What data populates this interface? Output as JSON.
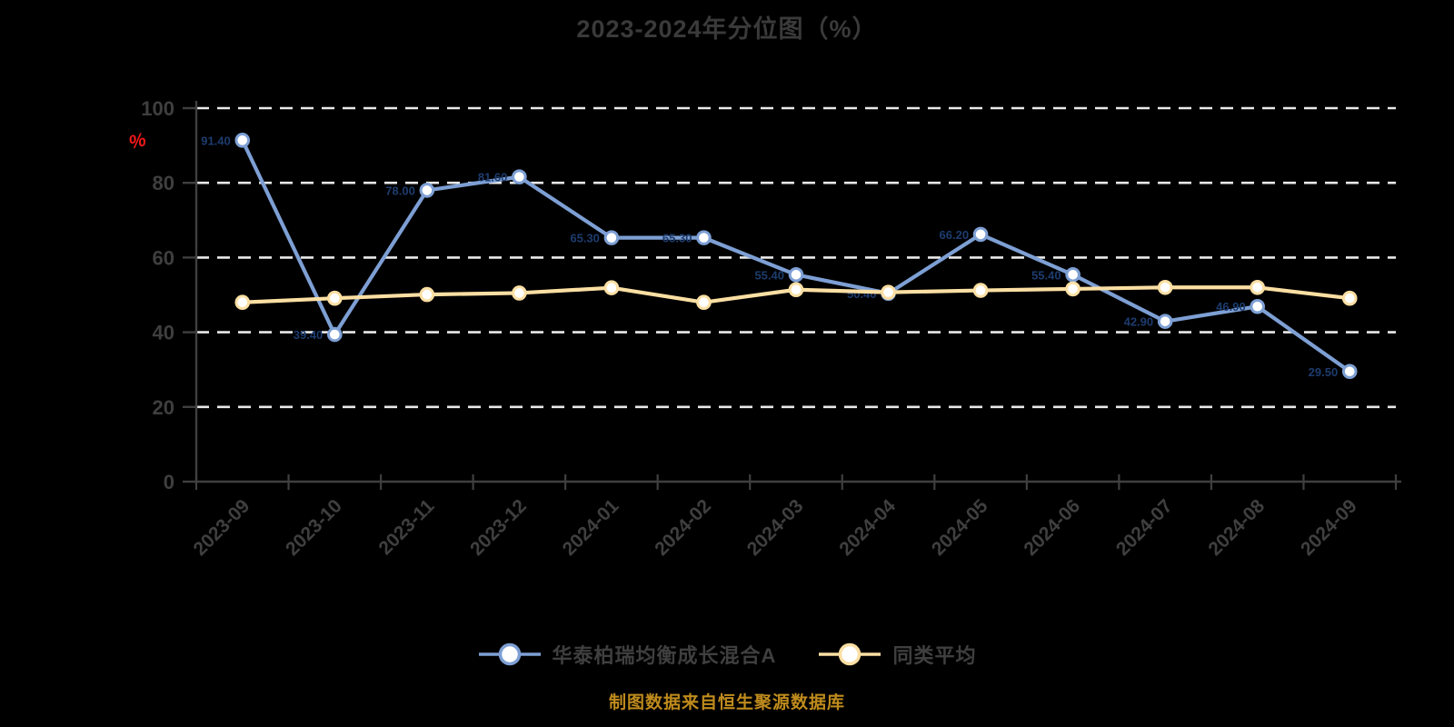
{
  "title": "2023-2024年分位图（%）",
  "caption": "制图数据来自恒生聚源数据库",
  "y_axis": {
    "unit_label": "%",
    "ticks": [
      0,
      20,
      40,
      60,
      80,
      100
    ]
  },
  "legend": {
    "items": [
      {
        "label": "华泰柏瑞均衡成长混合A",
        "color": "#7d9fd4"
      },
      {
        "label": "同类平均",
        "color": "#fbdfa3"
      }
    ]
  },
  "chart_data": {
    "type": "line",
    "title": "2023-2024年分位图（%）",
    "categories": [
      "2023-09",
      "2023-10",
      "2023-11",
      "2023-12",
      "2024-01",
      "2024-02",
      "2024-03",
      "2024-04",
      "2024-05",
      "2024-06",
      "2024-07",
      "2024-08",
      "2024-09"
    ],
    "series": [
      {
        "name": "华泰柏瑞均衡成长混合A",
        "color": "#7d9fd4",
        "marker": "circle-white-fill",
        "values": [
          91.4,
          39.4,
          78.0,
          81.6,
          65.3,
          65.3,
          55.4,
          50.4,
          66.2,
          55.4,
          42.9,
          46.9,
          29.5
        ],
        "data_labels": true,
        "data_label_color": "#1d3c6e"
      },
      {
        "name": "同类平均",
        "color": "#fbdfa3",
        "marker": "circle-white-fill",
        "values": [
          48.0,
          49.1,
          50.1,
          50.5,
          51.9,
          48.0,
          51.4,
          50.7,
          51.2,
          51.6,
          52.0,
          52.0,
          49.1
        ],
        "data_labels": false
      }
    ],
    "ylim": [
      0,
      100
    ],
    "yticks": [
      0,
      20,
      40,
      60,
      80,
      100
    ],
    "ylabel": "%",
    "grid": "horizontal-dashed-white",
    "legend_position": "bottom-center"
  },
  "colors": {
    "background": "#000000",
    "title_text": "#3a3a3a",
    "axis_text": "#3f3f3f",
    "axis_line": "#3f3f3f",
    "gridline": "#e9e9e9",
    "marker_fill": "#ffffff",
    "caption_text": "#bf8b1d",
    "percent_label": "#f01818"
  }
}
